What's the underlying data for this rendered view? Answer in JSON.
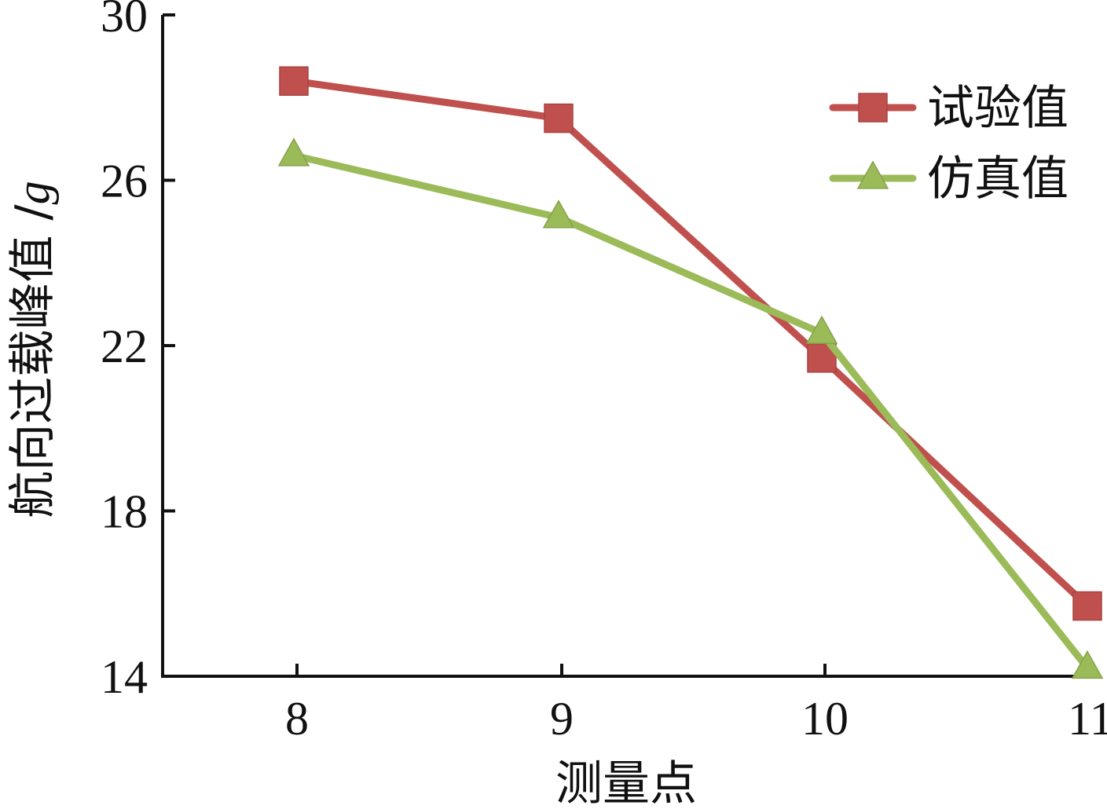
{
  "chart_data": {
    "type": "line",
    "title": "",
    "xlabel": "测量点",
    "ylabel_main": "航向过载峰值 /",
    "ylabel_unit": "g",
    "x": [
      8,
      9,
      10,
      11
    ],
    "x_tick_labels": [
      "8",
      "9",
      "10",
      "11"
    ],
    "ylim": [
      14,
      30
    ],
    "y_ticks": [
      14,
      18,
      22,
      26,
      30
    ],
    "y_tick_labels": [
      "14",
      "18",
      "22",
      "26",
      "30"
    ],
    "grid": false,
    "legend_position": "top-right",
    "series": [
      {
        "name": "试验值",
        "color": "#c0504d",
        "marker": "square",
        "values": [
          28.4,
          27.5,
          21.7,
          15.7
        ]
      },
      {
        "name": "仿真值",
        "color": "#9bbb59",
        "marker": "triangle",
        "values": [
          26.6,
          25.1,
          22.3,
          14.2
        ]
      }
    ]
  }
}
